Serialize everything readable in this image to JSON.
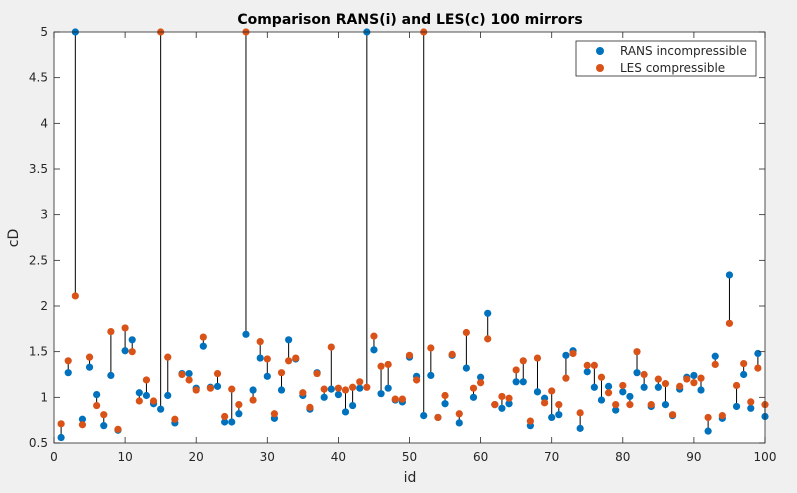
{
  "chart_data": {
    "type": "scatter",
    "title": "Comparison RANS(i) and LES(c) 100 mirrors",
    "xlabel": "id",
    "ylabel": "cD",
    "xlim": [
      0,
      100
    ],
    "ylim": [
      0.5,
      5
    ],
    "xticks": [
      "0",
      "10",
      "20",
      "30",
      "40",
      "50",
      "60",
      "70",
      "80",
      "90",
      "100"
    ],
    "yticks": [
      "0.5",
      "1",
      "1.5",
      "2",
      "2.5",
      "3",
      "3.5",
      "4",
      "4.5",
      "5"
    ],
    "grid": false,
    "legend_position": "top-right",
    "connectors": "vertical black line from RANS value to LES value at each id",
    "series": [
      {
        "name": "RANS incompressible",
        "color": "#0072bd",
        "x": [
          1,
          2,
          3,
          4,
          5,
          6,
          7,
          8,
          9,
          10,
          11,
          12,
          13,
          14,
          15,
          16,
          17,
          18,
          19,
          20,
          21,
          22,
          23,
          24,
          25,
          26,
          27,
          28,
          29,
          30,
          31,
          32,
          33,
          34,
          35,
          36,
          37,
          38,
          39,
          40,
          41,
          42,
          43,
          44,
          45,
          46,
          47,
          48,
          49,
          50,
          51,
          52,
          53,
          54,
          55,
          56,
          57,
          58,
          59,
          60,
          61,
          62,
          63,
          64,
          65,
          66,
          67,
          68,
          69,
          70,
          71,
          72,
          73,
          74,
          75,
          76,
          77,
          78,
          79,
          80,
          81,
          82,
          83,
          84,
          85,
          86,
          87,
          88,
          89,
          90,
          91,
          92,
          93,
          94,
          95,
          96,
          97,
          98,
          99,
          100
        ],
        "y": [
          0.56,
          1.27,
          5.0,
          0.76,
          1.33,
          1.03,
          0.69,
          1.24,
          0.64,
          1.51,
          1.63,
          1.05,
          1.02,
          0.93,
          0.87,
          1.02,
          0.72,
          1.26,
          1.26,
          1.1,
          1.56,
          1.11,
          1.12,
          0.73,
          0.73,
          0.82,
          1.69,
          1.08,
          1.43,
          1.23,
          0.77,
          1.08,
          1.63,
          1.42,
          1.02,
          0.87,
          1.27,
          1.0,
          1.09,
          1.03,
          0.84,
          0.91,
          1.1,
          5.0,
          1.52,
          1.04,
          1.1,
          0.97,
          0.95,
          1.44,
          1.23,
          0.8,
          1.24,
          0.78,
          0.93,
          1.46,
          0.72,
          1.32,
          1.0,
          1.22,
          1.92,
          0.92,
          0.88,
          0.93,
          1.17,
          1.17,
          0.69,
          1.06,
          0.99,
          0.78,
          0.81,
          1.46,
          1.51,
          0.66,
          1.28,
          1.11,
          0.97,
          1.12,
          0.86,
          1.06,
          1.01,
          1.27,
          1.11,
          0.9,
          1.11,
          0.92,
          0.8,
          1.09,
          1.22,
          1.24,
          1.08,
          0.63,
          1.45,
          0.77,
          2.34,
          0.9,
          1.25,
          0.88,
          1.48,
          0.79
        ]
      },
      {
        "name": "LES compressible",
        "color": "#d95319",
        "x": [
          1,
          2,
          3,
          4,
          5,
          6,
          7,
          8,
          9,
          10,
          11,
          12,
          13,
          14,
          15,
          16,
          17,
          18,
          19,
          20,
          21,
          22,
          23,
          24,
          25,
          26,
          27,
          28,
          29,
          30,
          31,
          32,
          33,
          34,
          35,
          36,
          37,
          38,
          39,
          40,
          41,
          42,
          43,
          44,
          45,
          46,
          47,
          48,
          49,
          50,
          51,
          52,
          53,
          54,
          55,
          56,
          57,
          58,
          59,
          60,
          61,
          62,
          63,
          64,
          65,
          66,
          67,
          68,
          69,
          70,
          71,
          72,
          73,
          74,
          75,
          76,
          77,
          78,
          79,
          80,
          81,
          82,
          83,
          84,
          85,
          86,
          87,
          88,
          89,
          90,
          91,
          92,
          93,
          94,
          95,
          96,
          97,
          98,
          99,
          100
        ],
        "y": [
          0.71,
          1.4,
          2.11,
          0.7,
          1.44,
          0.91,
          0.81,
          1.72,
          0.65,
          1.76,
          1.5,
          0.96,
          1.19,
          0.96,
          5.0,
          1.44,
          0.76,
          1.25,
          1.19,
          1.08,
          1.66,
          1.1,
          1.26,
          0.79,
          1.09,
          0.92,
          5.0,
          0.97,
          1.61,
          1.42,
          0.82,
          1.27,
          1.4,
          1.43,
          1.05,
          0.89,
          1.26,
          1.09,
          1.55,
          1.1,
          1.08,
          1.11,
          1.17,
          1.11,
          1.67,
          1.34,
          1.36,
          0.98,
          0.98,
          1.46,
          1.19,
          5.0,
          1.54,
          0.78,
          1.02,
          1.47,
          0.82,
          1.71,
          1.1,
          1.16,
          1.64,
          0.92,
          1.01,
          0.99,
          1.3,
          1.4,
          0.74,
          1.43,
          0.94,
          1.07,
          0.92,
          1.21,
          1.48,
          0.83,
          1.35,
          1.35,
          1.22,
          1.05,
          0.92,
          1.13,
          0.92,
          1.5,
          1.25,
          0.92,
          1.2,
          1.15,
          0.81,
          1.12,
          1.2,
          1.16,
          1.21,
          0.78,
          1.36,
          0.8,
          1.81,
          1.13,
          1.37,
          0.95,
          1.32,
          0.92
        ]
      }
    ]
  }
}
